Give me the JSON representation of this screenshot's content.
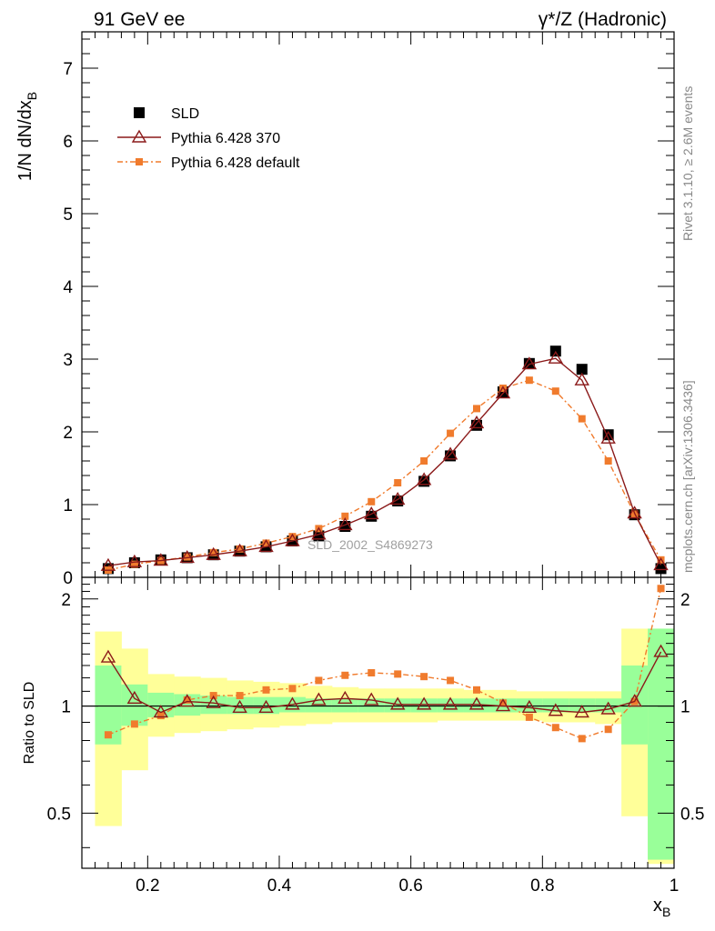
{
  "header": {
    "left_title": "91 GeV ee",
    "right_title": "γ*/Z (Hadronic)"
  },
  "side_text": {
    "rivet": "Rivet 3.1.10, ≥ 2.6M events",
    "mcplots": "mcplots.cern.ch [arXiv:1306.3436]"
  },
  "watermark": "SLD_2002_S4869273",
  "axes": {
    "xlabel": "x",
    "xlabel_sub": "B",
    "ylabel_main": "1/N dN/dx",
    "ylabel_main_sub": "B",
    "ylabel_ratio": "Ratio to SLD"
  },
  "colors": {
    "data": "#000000",
    "pythia370": "#8b1a1a",
    "pythia_default": "#f07b2d",
    "band_inner": "#99ff99",
    "band_outer": "#ffff99"
  },
  "chart_data": [
    {
      "type": "line",
      "panel": "main",
      "xlim": [
        0.1,
        1.0
      ],
      "ylim": [
        0,
        7.5
      ],
      "xticks": [
        0.2,
        0.4,
        0.6,
        0.8,
        1
      ],
      "xtick_labels": [
        "0.2",
        "0.4",
        "0.6",
        "0.8",
        "1"
      ],
      "yticks": [
        0,
        1,
        2,
        3,
        4,
        5,
        6,
        7
      ],
      "ytick_labels": [
        "0",
        "1",
        "2",
        "3",
        "4",
        "5",
        "6",
        "7"
      ],
      "legend_position": "top-left",
      "x": [
        0.14,
        0.18,
        0.22,
        0.26,
        0.3,
        0.34,
        0.38,
        0.42,
        0.46,
        0.5,
        0.54,
        0.58,
        0.62,
        0.66,
        0.7,
        0.74,
        0.78,
        0.82,
        0.86,
        0.9,
        0.94,
        0.98
      ],
      "series": [
        {
          "name": "SLD",
          "marker": "square",
          "values": [
            0.12,
            0.2,
            0.24,
            0.27,
            0.31,
            0.36,
            0.42,
            0.5,
            0.57,
            0.7,
            0.84,
            1.05,
            1.32,
            1.67,
            2.09,
            2.55,
            2.94,
            3.11,
            2.86,
            1.96,
            0.86,
            0.12
          ]
        },
        {
          "name": "Pythia 6.428 370",
          "marker": "triangle",
          "values": [
            0.16,
            0.21,
            0.23,
            0.27,
            0.31,
            0.36,
            0.42,
            0.5,
            0.59,
            0.72,
            0.87,
            1.07,
            1.34,
            1.69,
            2.12,
            2.53,
            2.93,
            3.01,
            2.71,
            1.91,
            0.88,
            0.17
          ]
        },
        {
          "name": "Pythia 6.428 default",
          "marker": "small-square",
          "values": [
            0.1,
            0.18,
            0.23,
            0.28,
            0.34,
            0.39,
            0.47,
            0.56,
            0.67,
            0.84,
            1.04,
            1.3,
            1.6,
            1.98,
            2.32,
            2.6,
            2.71,
            2.56,
            2.18,
            1.6,
            0.87,
            0.24
          ]
        }
      ]
    },
    {
      "type": "line",
      "panel": "ratio",
      "xlim": [
        0.1,
        1.0
      ],
      "ylim": [
        0.35,
        2.3
      ],
      "xticks": [
        0.2,
        0.4,
        0.6,
        0.8,
        1
      ],
      "xtick_labels": [
        "0.2",
        "0.4",
        "0.6",
        "0.8",
        "1"
      ],
      "yticks": [
        0.5,
        1,
        2
      ],
      "ytick_labels": [
        "0.5",
        "1",
        "2"
      ],
      "reference_line": 1,
      "x": [
        0.14,
        0.18,
        0.22,
        0.26,
        0.3,
        0.34,
        0.38,
        0.42,
        0.46,
        0.5,
        0.54,
        0.58,
        0.62,
        0.66,
        0.7,
        0.74,
        0.78,
        0.82,
        0.86,
        0.9,
        0.94,
        0.98
      ],
      "bins": [
        [
          0.12,
          0.16
        ],
        [
          0.16,
          0.2
        ],
        [
          0.2,
          0.24
        ],
        [
          0.24,
          0.28
        ],
        [
          0.28,
          0.32
        ],
        [
          0.32,
          0.36
        ],
        [
          0.36,
          0.4
        ],
        [
          0.4,
          0.44
        ],
        [
          0.44,
          0.48
        ],
        [
          0.48,
          0.52
        ],
        [
          0.52,
          0.56
        ],
        [
          0.56,
          0.6
        ],
        [
          0.6,
          0.64
        ],
        [
          0.64,
          0.68
        ],
        [
          0.68,
          0.72
        ],
        [
          0.72,
          0.76
        ],
        [
          0.76,
          0.8
        ],
        [
          0.8,
          0.84
        ],
        [
          0.84,
          0.88
        ],
        [
          0.88,
          0.92
        ],
        [
          0.92,
          0.96
        ],
        [
          0.96,
          1.0
        ]
      ],
      "band_inner": [
        [
          0.78,
          1.3
        ],
        [
          0.88,
          1.15
        ],
        [
          0.93,
          1.09
        ],
        [
          0.94,
          1.08
        ],
        [
          0.95,
          1.07
        ],
        [
          0.95,
          1.06
        ],
        [
          0.95,
          1.06
        ],
        [
          0.96,
          1.06
        ],
        [
          0.96,
          1.05
        ],
        [
          0.96,
          1.05
        ],
        [
          0.96,
          1.05
        ],
        [
          0.96,
          1.05
        ],
        [
          0.96,
          1.05
        ],
        [
          0.96,
          1.05
        ],
        [
          0.96,
          1.05
        ],
        [
          0.96,
          1.05
        ],
        [
          0.96,
          1.05
        ],
        [
          0.96,
          1.05
        ],
        [
          0.96,
          1.05
        ],
        [
          0.96,
          1.05
        ],
        [
          0.78,
          1.3
        ],
        [
          0.37,
          1.65
        ]
      ],
      "band_outer": [
        [
          0.46,
          1.62
        ],
        [
          0.66,
          1.45
        ],
        [
          0.82,
          1.23
        ],
        [
          0.84,
          1.21
        ],
        [
          0.85,
          1.2
        ],
        [
          0.86,
          1.18
        ],
        [
          0.87,
          1.17
        ],
        [
          0.88,
          1.16
        ],
        [
          0.89,
          1.14
        ],
        [
          0.9,
          1.13
        ],
        [
          0.9,
          1.12
        ],
        [
          0.9,
          1.12
        ],
        [
          0.9,
          1.12
        ],
        [
          0.91,
          1.12
        ],
        [
          0.91,
          1.11
        ],
        [
          0.91,
          1.11
        ],
        [
          0.91,
          1.1
        ],
        [
          0.9,
          1.1
        ],
        [
          0.9,
          1.1
        ],
        [
          0.89,
          1.1
        ],
        [
          0.49,
          1.65
        ],
        [
          0.36,
          1.65
        ]
      ],
      "series": [
        {
          "name": "Pythia 6.428 370",
          "marker": "triangle",
          "values": [
            1.37,
            1.05,
            0.96,
            1.03,
            1.02,
            0.99,
            0.99,
            1.01,
            1.04,
            1.05,
            1.04,
            1.01,
            1.01,
            1.01,
            1.01,
            1.0,
            0.99,
            0.97,
            0.96,
            0.98,
            1.03,
            1.42
          ]
        },
        {
          "name": "Pythia 6.428 default",
          "marker": "small-square",
          "values": [
            0.83,
            0.89,
            0.94,
            1.04,
            1.07,
            1.07,
            1.11,
            1.12,
            1.18,
            1.22,
            1.24,
            1.23,
            1.21,
            1.18,
            1.11,
            1.02,
            0.93,
            0.87,
            0.81,
            0.86,
            1.03,
            2.14
          ]
        }
      ]
    }
  ]
}
